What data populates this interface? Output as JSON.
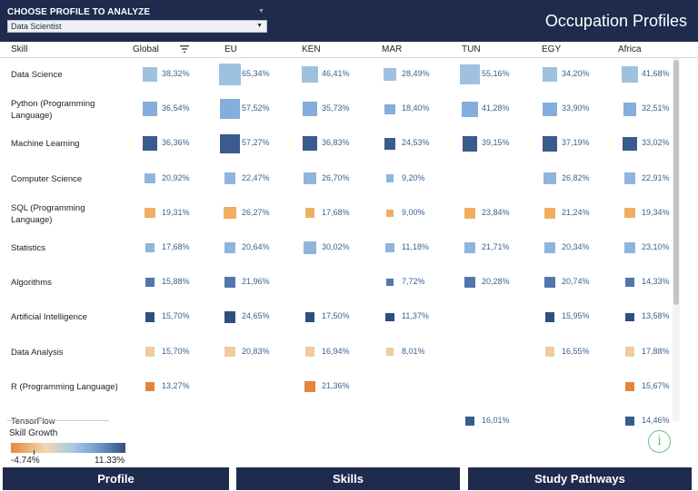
{
  "header": {
    "profile_label": "CHOOSE PROFILE TO ANALYZE",
    "selected_profile": "Data Scientist",
    "title": "Occupation Profiles"
  },
  "columns": [
    "Skill",
    "Global",
    "EU",
    "KEN",
    "MAR",
    "TUN",
    "EGY",
    "Africa"
  ],
  "rows": [
    {
      "skill": "Data Science",
      "cells": [
        {
          "value": "38,32%",
          "pct": 38.32,
          "color": "#9fc1e0"
        },
        {
          "value": "65,34%",
          "pct": 65.34,
          "color": "#9fc1e0"
        },
        {
          "value": "46,41%",
          "pct": 46.41,
          "color": "#9fc1e0"
        },
        {
          "value": "28,49%",
          "pct": 28.49,
          "color": "#9fc1e0"
        },
        {
          "value": "55,16%",
          "pct": 55.16,
          "color": "#9fc1e0"
        },
        {
          "value": "34,20%",
          "pct": 34.2,
          "color": "#9fc1e0"
        },
        {
          "value": "41,68%",
          "pct": 41.68,
          "color": "#9fc1e0"
        }
      ]
    },
    {
      "skill": "Python (Programming Language)",
      "cells": [
        {
          "value": "36,54%",
          "pct": 36.54,
          "color": "#84aedb"
        },
        {
          "value": "57,52%",
          "pct": 57.52,
          "color": "#84aedb"
        },
        {
          "value": "35,73%",
          "pct": 35.73,
          "color": "#84aedb"
        },
        {
          "value": "18,40%",
          "pct": 18.4,
          "color": "#84aedb"
        },
        {
          "value": "41,28%",
          "pct": 41.28,
          "color": "#84aedb"
        },
        {
          "value": "33,90%",
          "pct": 33.9,
          "color": "#84aedb"
        },
        {
          "value": "32,51%",
          "pct": 32.51,
          "color": "#84aedb"
        }
      ]
    },
    {
      "skill": "Machine Learning",
      "cells": [
        {
          "value": "36,36%",
          "pct": 36.36,
          "color": "#3a5b8c"
        },
        {
          "value": "57,27%",
          "pct": 57.27,
          "color": "#3a5b8c"
        },
        {
          "value": "36,83%",
          "pct": 36.83,
          "color": "#3a5b8c"
        },
        {
          "value": "24,53%",
          "pct": 24.53,
          "color": "#3a5b8c"
        },
        {
          "value": "39,15%",
          "pct": 39.15,
          "color": "#3a5b8c"
        },
        {
          "value": "37,19%",
          "pct": 37.19,
          "color": "#3a5b8c"
        },
        {
          "value": "33,02%",
          "pct": 33.02,
          "color": "#3a5b8c"
        }
      ]
    },
    {
      "skill": "Computer Science",
      "cells": [
        {
          "value": "20,92%",
          "pct": 20.92,
          "color": "#8fb5dd"
        },
        {
          "value": "22,47%",
          "pct": 22.47,
          "color": "#8fb5dd"
        },
        {
          "value": "26,70%",
          "pct": 26.7,
          "color": "#8fb5dd"
        },
        {
          "value": "9,20%",
          "pct": 9.2,
          "color": "#8fb5dd"
        },
        null,
        {
          "value": "26,82%",
          "pct": 26.82,
          "color": "#8fb5dd"
        },
        {
          "value": "22,91%",
          "pct": 22.91,
          "color": "#8fb5dd"
        }
      ]
    },
    {
      "skill": "SQL (Programming Language)",
      "cells": [
        {
          "value": "19,31%",
          "pct": 19.31,
          "color": "#f0ae62"
        },
        {
          "value": "26,27%",
          "pct": 26.27,
          "color": "#f0ae62"
        },
        {
          "value": "17,68%",
          "pct": 17.68,
          "color": "#f0ae62"
        },
        {
          "value": "9,00%",
          "pct": 9.0,
          "color": "#f0ae62"
        },
        {
          "value": "23,84%",
          "pct": 23.84,
          "color": "#f0ae62"
        },
        {
          "value": "21,24%",
          "pct": 21.24,
          "color": "#f0ae62"
        },
        {
          "value": "19,34%",
          "pct": 19.34,
          "color": "#f0ae62"
        }
      ]
    },
    {
      "skill": "Statistics",
      "cells": [
        {
          "value": "17,68%",
          "pct": 17.68,
          "color": "#8fb5dd"
        },
        {
          "value": "20,64%",
          "pct": 20.64,
          "color": "#8fb5dd"
        },
        {
          "value": "30,02%",
          "pct": 30.02,
          "color": "#8fb5dd"
        },
        {
          "value": "11,18%",
          "pct": 11.18,
          "color": "#8fb5dd"
        },
        {
          "value": "21,71%",
          "pct": 21.71,
          "color": "#8fb5dd"
        },
        {
          "value": "20,34%",
          "pct": 20.34,
          "color": "#8fb5dd"
        },
        {
          "value": "23,10%",
          "pct": 23.1,
          "color": "#8fb5dd"
        }
      ]
    },
    {
      "skill": "Algorithms",
      "cells": [
        {
          "value": "15,88%",
          "pct": 15.88,
          "color": "#5277ab"
        },
        {
          "value": "21,96%",
          "pct": 21.96,
          "color": "#5277ab"
        },
        null,
        {
          "value": "7,72%",
          "pct": 7.72,
          "color": "#5277ab"
        },
        {
          "value": "20,28%",
          "pct": 20.28,
          "color": "#5277ab"
        },
        {
          "value": "20,74%",
          "pct": 20.74,
          "color": "#5277ab"
        },
        {
          "value": "14,33%",
          "pct": 14.33,
          "color": "#5277ab"
        }
      ]
    },
    {
      "skill": "Artificial Intelligence",
      "cells": [
        {
          "value": "15,70%",
          "pct": 15.7,
          "color": "#2f4f82"
        },
        {
          "value": "24,65%",
          "pct": 24.65,
          "color": "#2f4f82"
        },
        {
          "value": "17,50%",
          "pct": 17.5,
          "color": "#2f4f82"
        },
        {
          "value": "11,37%",
          "pct": 11.37,
          "color": "#2f4f82"
        },
        null,
        {
          "value": "15,95%",
          "pct": 15.95,
          "color": "#2f4f82"
        },
        {
          "value": "13,58%",
          "pct": 13.58,
          "color": "#2f4f82"
        }
      ]
    },
    {
      "skill": "Data Analysis",
      "cells": [
        {
          "value": "15,70%",
          "pct": 15.7,
          "color": "#edcc9f"
        },
        {
          "value": "20,83%",
          "pct": 20.83,
          "color": "#edcc9f"
        },
        {
          "value": "16,94%",
          "pct": 16.94,
          "color": "#edcc9f"
        },
        {
          "value": "8,01%",
          "pct": 8.01,
          "color": "#edcc9f"
        },
        null,
        {
          "value": "16,55%",
          "pct": 16.55,
          "color": "#edcc9f"
        },
        {
          "value": "17,88%",
          "pct": 17.88,
          "color": "#edcc9f"
        }
      ]
    },
    {
      "skill": "R (Programming Language)",
      "cells": [
        {
          "value": "13,27%",
          "pct": 13.27,
          "color": "#e4853c"
        },
        null,
        {
          "value": "21,36%",
          "pct": 21.36,
          "color": "#e4853c"
        },
        null,
        null,
        null,
        {
          "value": "15,67%",
          "pct": 15.67,
          "color": "#e4853c"
        }
      ]
    },
    {
      "skill": "TensorFlow",
      "cells": [
        null,
        null,
        null,
        null,
        {
          "value": "16,01%",
          "pct": 16.01,
          "color": "#3a5b8c"
        },
        null,
        {
          "value": "14,46%",
          "pct": 14.46,
          "color": "#3a5b8c"
        }
      ]
    }
  ],
  "legend": {
    "title": "Skill Growth",
    "min": "-4.74%",
    "max": "11.33%"
  },
  "tabs": [
    "Profile",
    "Skills",
    "Study Pathways"
  ],
  "icons": {
    "sort": "sort-descending-icon",
    "info": "info-icon",
    "dropdown": "chevron-down-icon"
  },
  "colors": {
    "navy": "#1e2b4d",
    "value_text": "#3b5f8f",
    "info_green": "#6bbf8a"
  }
}
